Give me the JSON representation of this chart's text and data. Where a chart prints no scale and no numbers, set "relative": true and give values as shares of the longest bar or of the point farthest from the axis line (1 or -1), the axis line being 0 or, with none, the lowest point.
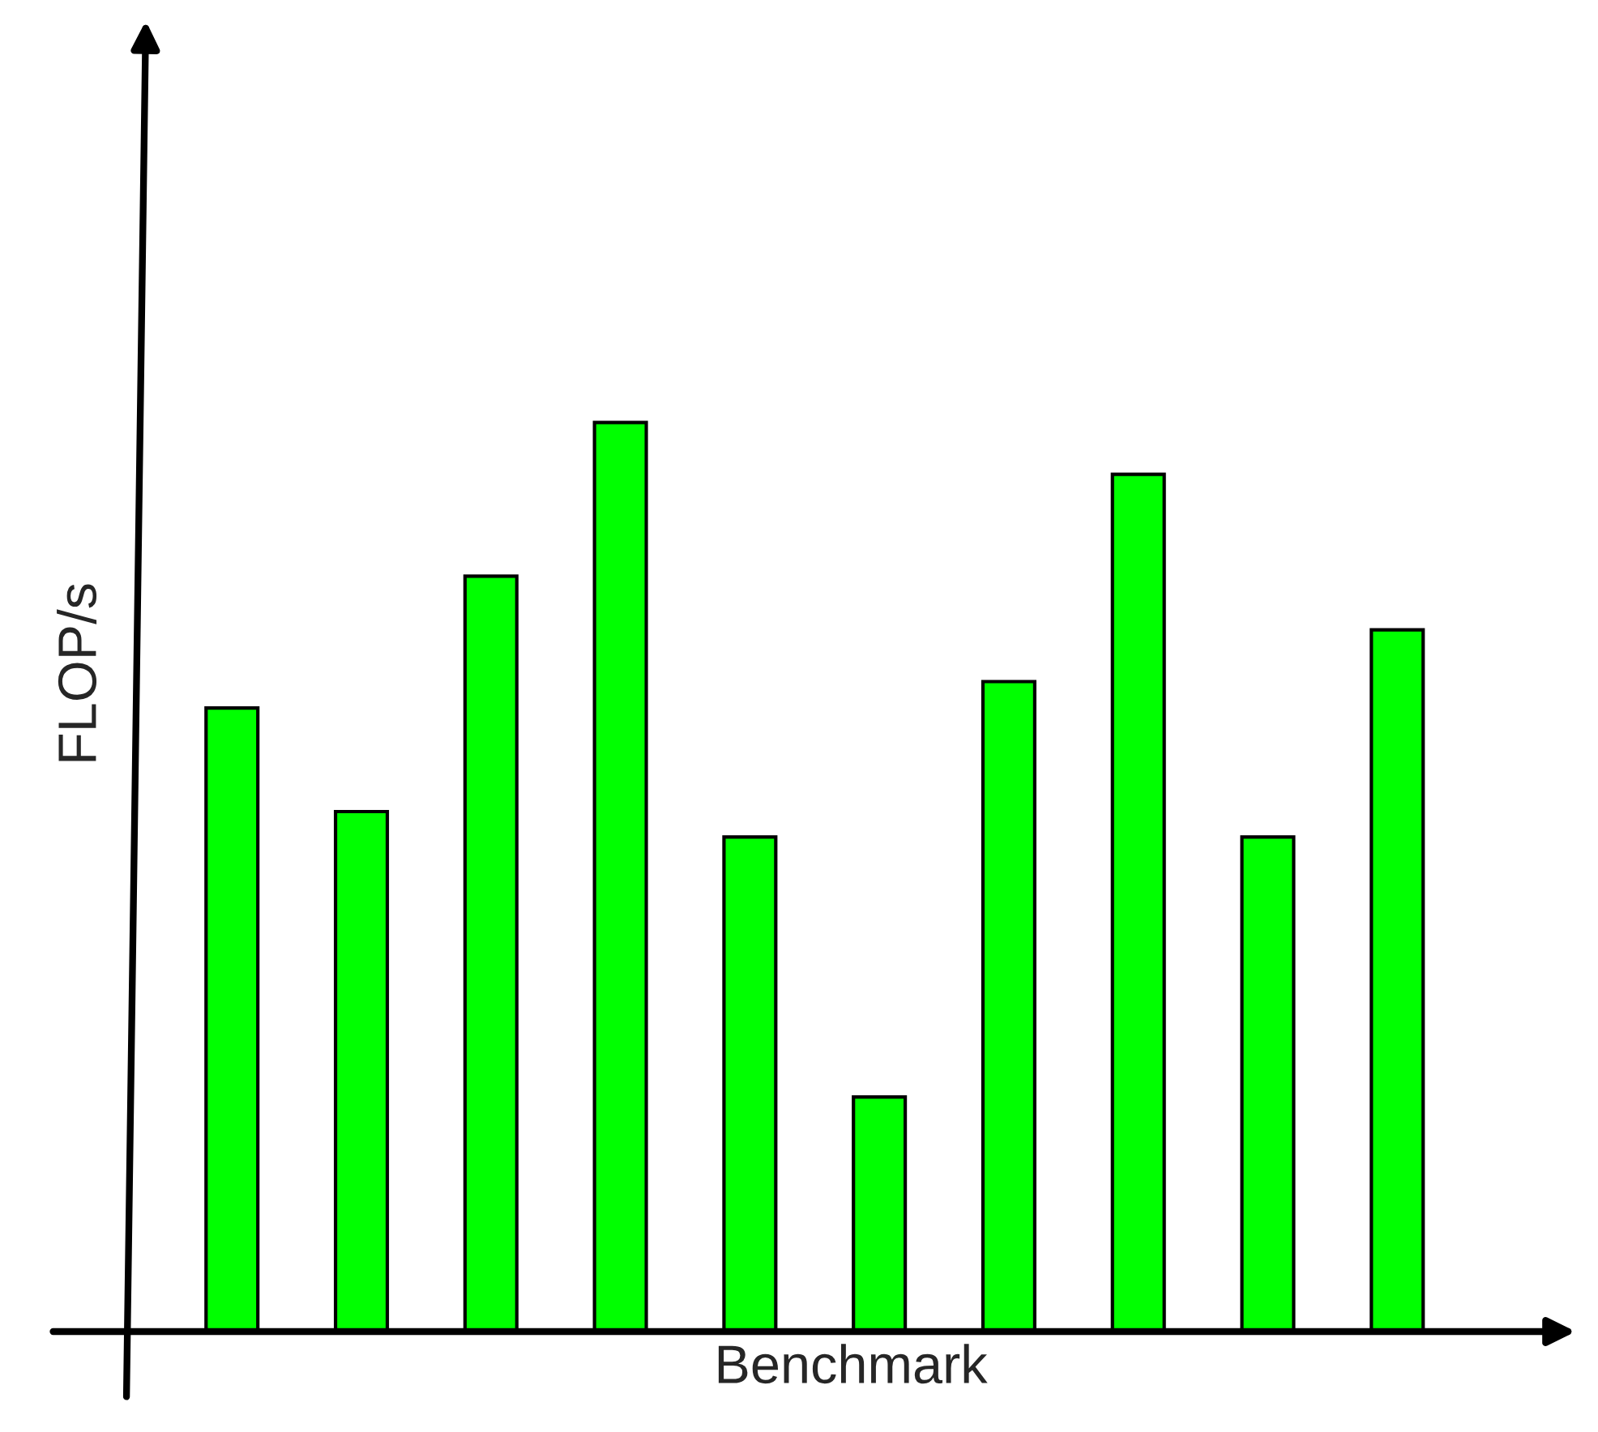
{
  "chart_data": {
    "type": "bar",
    "relative": true,
    "xlabel": "Benchmark",
    "ylabel": "FLOP/s",
    "categories": [
      null,
      null,
      null,
      null,
      null,
      null,
      null,
      null,
      null,
      null
    ],
    "values": [
      0.686,
      0.572,
      0.831,
      1,
      0.544,
      0.258,
      0.715,
      0.943,
      0.544,
      0.772
    ],
    "color": "#00ff00",
    "grid": false,
    "legend": false
  }
}
